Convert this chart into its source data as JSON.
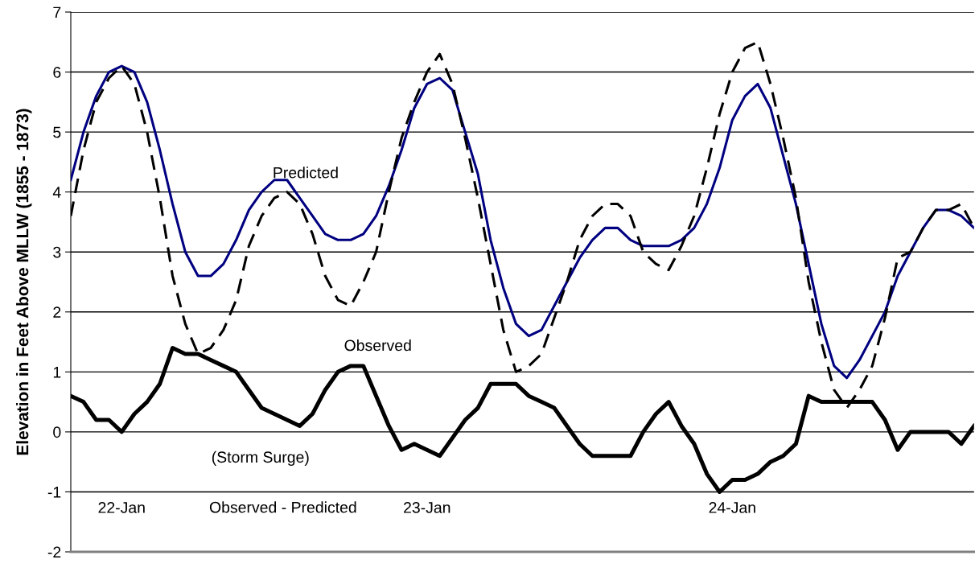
{
  "chart_data": {
    "type": "line",
    "ylabel": "Elevation in Feet Above MLLW (1855 - 1873)",
    "categories": [
      null,
      null,
      null,
      null,
      "22-Jan",
      null,
      null,
      null,
      null,
      null,
      null,
      null,
      null,
      null,
      null,
      null,
      null,
      null,
      null,
      null,
      null,
      null,
      null,
      null,
      null,
      null,
      null,
      null,
      "23-Jan",
      null,
      null,
      null,
      null,
      null,
      null,
      null,
      null,
      null,
      null,
      null,
      null,
      null,
      null,
      null,
      null,
      null,
      null,
      null,
      null,
      null,
      null,
      null,
      "24-Jan",
      null,
      null,
      null,
      null,
      null,
      null,
      null,
      null,
      null,
      null,
      null,
      null,
      null,
      null,
      null,
      null,
      null,
      null,
      null
    ],
    "series": [
      {
        "name": "Predicted",
        "color": "#000080",
        "line_style": "solid",
        "values": [
          4.2,
          5.0,
          5.6,
          6.0,
          6.1,
          6.0,
          5.5,
          4.7,
          3.8,
          3.0,
          2.6,
          2.6,
          2.8,
          3.2,
          3.7,
          4.0,
          4.2,
          4.2,
          3.9,
          3.6,
          3.3,
          3.2,
          3.2,
          3.3,
          3.6,
          4.1,
          4.7,
          5.4,
          5.8,
          5.9,
          5.7,
          5.0,
          4.3,
          3.2,
          2.4,
          1.8,
          1.6,
          1.7,
          2.1,
          2.5,
          2.9,
          3.2,
          3.4,
          3.4,
          3.2,
          3.1,
          3.1,
          3.1,
          3.2,
          3.4,
          3.8,
          4.4,
          5.2,
          5.6,
          5.8,
          5.4,
          4.6,
          3.8,
          2.8,
          1.8,
          1.1,
          0.9,
          1.2,
          1.6,
          2.0,
          2.6,
          3.0,
          3.4,
          3.7,
          3.7,
          3.6,
          3.4
        ]
      },
      {
        "color": "#000000",
        "line_style": "dashed",
        "values": [
          3.6,
          4.7,
          5.5,
          5.9,
          6.1,
          5.8,
          5.0,
          3.9,
          2.6,
          1.8,
          1.3,
          1.4,
          1.7,
          2.2,
          3.1,
          3.6,
          3.9,
          4.0,
          3.8,
          3.3,
          2.6,
          2.2,
          2.1,
          2.5,
          3.0,
          4.0,
          4.9,
          5.5,
          6.0,
          6.3,
          5.8,
          4.9,
          3.9,
          2.8,
          1.7,
          1.0,
          1.1,
          1.3,
          1.9,
          2.5,
          3.2,
          3.6,
          3.8,
          3.8,
          3.6,
          3.0,
          2.8,
          2.7,
          3.1,
          3.6,
          4.4,
          5.3,
          6.0,
          6.4,
          6.5,
          5.8,
          4.9,
          3.9,
          2.5,
          1.5,
          0.7,
          0.4,
          0.7,
          1.1,
          1.9,
          2.9,
          3.0,
          3.4,
          3.7,
          3.7,
          3.8,
          3.4
        ]
      },
      {
        "color": "#000000",
        "line_style": "solid",
        "values": [
          0.6,
          0.5,
          0.2,
          0.2,
          0.0,
          0.3,
          0.5,
          0.8,
          1.4,
          1.3,
          1.3,
          1.2,
          1.1,
          1.0,
          0.7,
          0.4,
          0.3,
          0.2,
          0.1,
          0.3,
          0.7,
          1.0,
          1.1,
          1.1,
          0.6,
          0.1,
          -0.3,
          -0.2,
          -0.3,
          -0.4,
          -0.1,
          0.2,
          0.4,
          0.8,
          0.8,
          0.8,
          0.6,
          0.5,
          0.4,
          0.1,
          -0.2,
          -0.4,
          -0.4,
          -0.4,
          -0.4,
          0.0,
          0.3,
          0.5,
          0.1,
          -0.2,
          -0.7,
          -1.0,
          -0.8,
          -0.8,
          -0.7,
          -0.5,
          -0.4,
          -0.2,
          0.6,
          0.5,
          0.5,
          0.5,
          0.5,
          0.5,
          0.2,
          -0.3,
          0.0,
          0.0,
          0.0,
          0.0,
          -0.2,
          0.1
        ]
      }
    ],
    "annotations": [
      "Observed",
      "(Storm Surge)",
      "Observed - Predicted"
    ],
    "ylim": [
      -2,
      7
    ],
    "yticks": [
      -2,
      -1,
      0,
      1,
      2,
      3,
      4,
      5,
      6,
      7
    ],
    "grid": "y",
    "marker": "none"
  }
}
